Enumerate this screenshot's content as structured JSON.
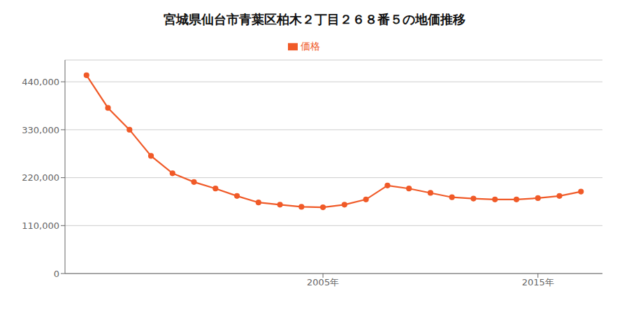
{
  "chart_data": {
    "type": "line",
    "title": "宮城県仙台市青葉区柏木２丁目２６８番５の地価推移",
    "x": [
      1994,
      1995,
      1996,
      1997,
      1998,
      1999,
      2000,
      2001,
      2002,
      2003,
      2004,
      2005,
      2006,
      2007,
      2008,
      2009,
      2010,
      2011,
      2012,
      2013,
      2014,
      2015,
      2016,
      2017
    ],
    "series": [
      {
        "name": "価格",
        "color": "#f05a28",
        "values": [
          455000,
          380000,
          330000,
          270000,
          230000,
          210000,
          195000,
          178000,
          163000,
          158000,
          153000,
          152000,
          158000,
          170000,
          202000,
          195000,
          185000,
          175000,
          172000,
          170000,
          170000,
          173000,
          178000,
          188000
        ]
      }
    ],
    "xlim": [
      1993,
      2018
    ],
    "xticks": [
      {
        "value": 2005,
        "label": "2005年"
      },
      {
        "value": 2015,
        "label": "2015年"
      }
    ],
    "ylim": [
      0,
      490000
    ],
    "yticks": [
      0,
      {
        "value": 110000,
        "label": "110,000"
      },
      {
        "value": 220000,
        "label": "220,000"
      },
      {
        "value": 330000,
        "label": "330,000"
      },
      {
        "value": 440000,
        "label": "440,000"
      }
    ],
    "grid": "y",
    "legend": "top",
    "marker": "circle"
  }
}
